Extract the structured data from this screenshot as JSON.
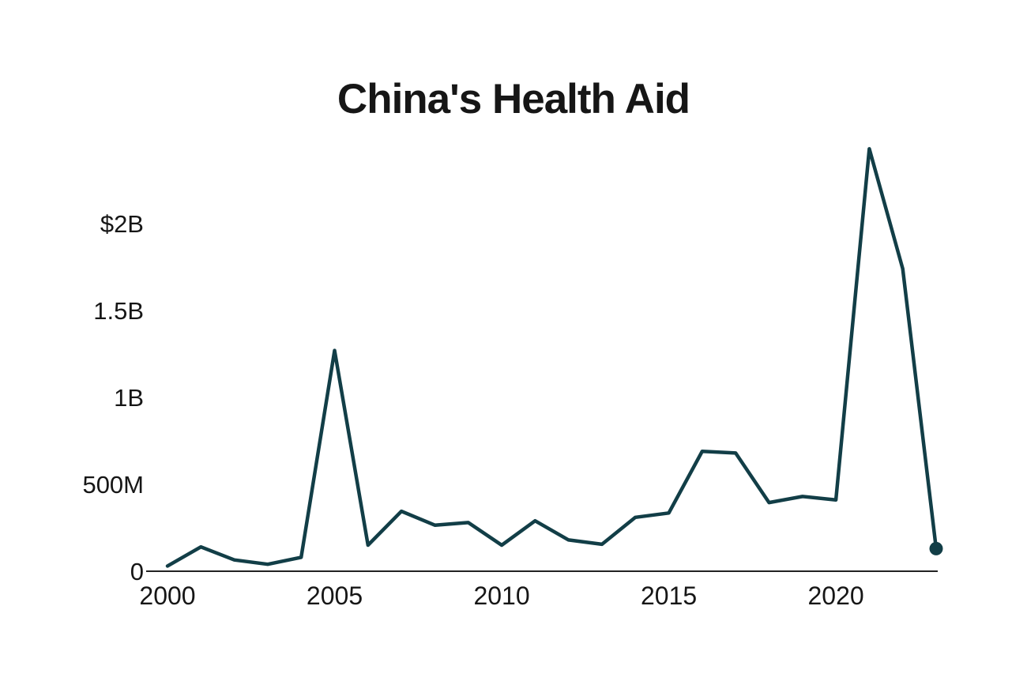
{
  "chart_data": {
    "type": "line",
    "title": "China's Health Aid",
    "unit_hint": "US dollars (M = millions, B = billions)",
    "x": [
      2000,
      2001,
      2002,
      2003,
      2004,
      2005,
      2006,
      2007,
      2008,
      2009,
      2010,
      2011,
      2012,
      2013,
      2014,
      2015,
      2016,
      2017,
      2018,
      2019,
      2020,
      2021,
      2022,
      2023
    ],
    "series": [
      {
        "name": "health-aid",
        "values_millions": [
          30,
          140,
          65,
          40,
          80,
          1270,
          150,
          345,
          265,
          280,
          150,
          290,
          180,
          155,
          310,
          335,
          690,
          680,
          395,
          430,
          410,
          2430,
          1740,
          130
        ]
      }
    ],
    "y_ticks": [
      {
        "label": "$2B",
        "value": 2000
      },
      {
        "label": "1.5B",
        "value": 1500
      },
      {
        "label": "1B",
        "value": 1000
      },
      {
        "label": "500M",
        "value": 500
      },
      {
        "label": "0",
        "value": 0
      }
    ],
    "x_ticks": [
      {
        "label": "2000",
        "year": 2000
      },
      {
        "label": "2005",
        "year": 2005
      },
      {
        "label": "2010",
        "year": 2010
      },
      {
        "label": "2015",
        "year": 2015
      },
      {
        "label": "2020",
        "year": 2020
      }
    ],
    "xlim": [
      2000,
      2023
    ],
    "ylim": [
      0,
      2500
    ],
    "grid": false,
    "legend": "none",
    "end_marker": {
      "year": 2023,
      "value_millions": 130
    },
    "colors": {
      "line": "#123e47",
      "axis": "#222222",
      "text": "#161616",
      "background": "#ffffff"
    }
  }
}
